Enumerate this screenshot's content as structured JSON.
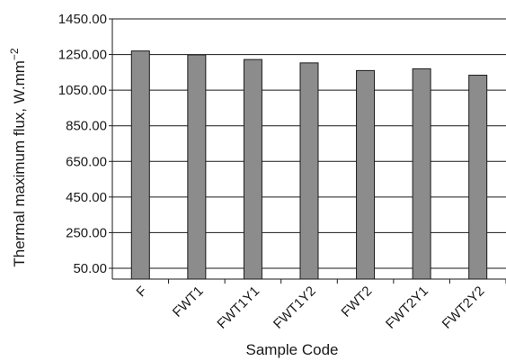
{
  "chart_data": {
    "type": "bar",
    "categories": [
      "F",
      "FWT1",
      "FWT1Y1",
      "FWT1Y2",
      "FWT2",
      "FWT2Y1",
      "FWT2Y2"
    ],
    "values": [
      1270,
      1248,
      1222,
      1203,
      1160,
      1170,
      1134
    ],
    "xlabel": "Sample Code",
    "ylabel": "Thermal maximum flux, W.mm",
    "ylabel_exponent": "−2",
    "ylim": [
      0,
      1450
    ],
    "yticks": [
      50,
      250,
      450,
      650,
      850,
      1050,
      1250,
      1450
    ],
    "ytick_labels": [
      "50.00",
      "250.00",
      "450.00",
      "650.00",
      "850.00",
      "1050.00",
      "1250.00",
      "1450.00"
    ],
    "grid": "horizontal",
    "bar_color": "#8c8c8c",
    "bar_edge_color": "#1a1a1a"
  }
}
